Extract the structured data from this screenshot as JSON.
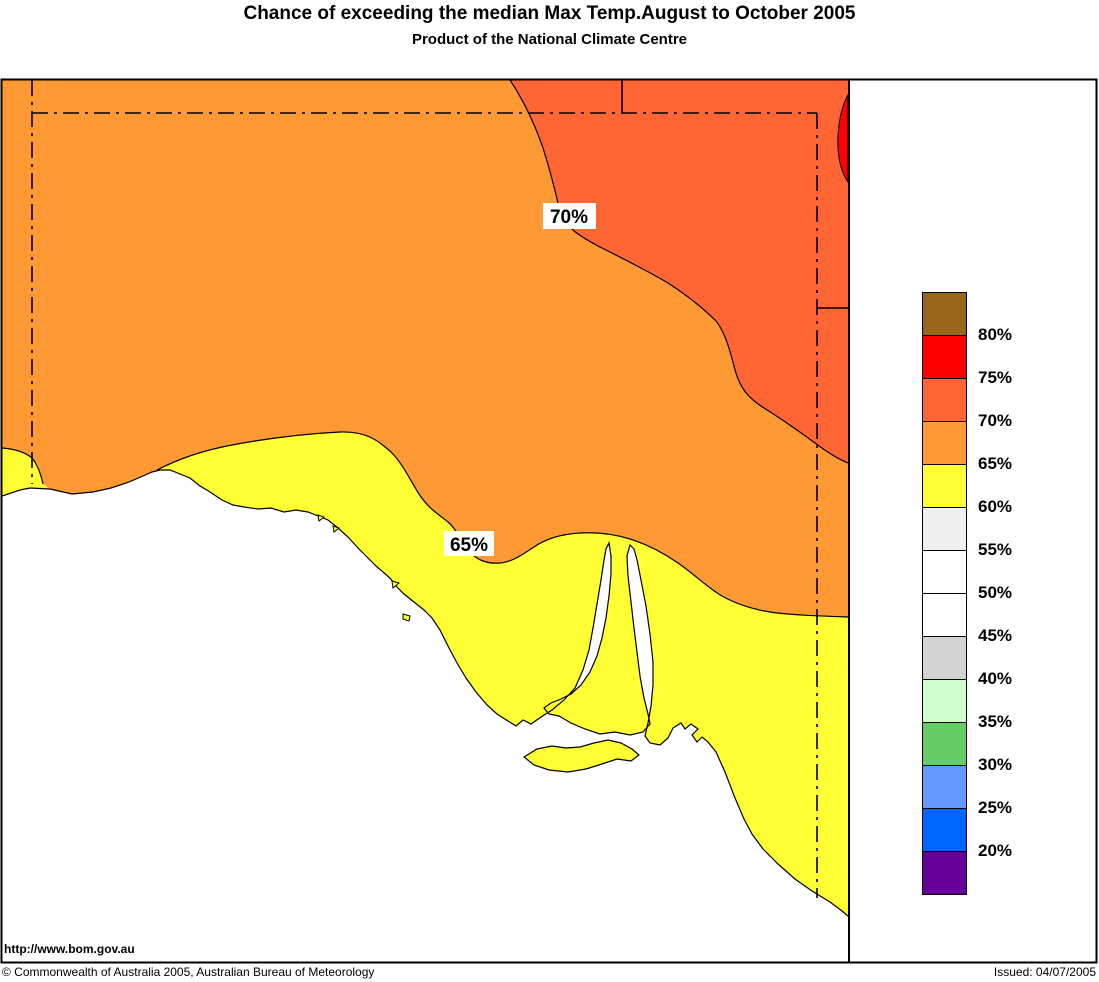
{
  "title": "Chance of exceeding the median Max Temp.August to October 2005",
  "subtitle": "Product of the National Climate Centre",
  "map": {
    "contour_label_70": "70%",
    "contour_label_65": "65%",
    "watermark_url": "http://www.bom.gov.au",
    "colors": {
      "ocean": "#FFFFFF",
      "band_60_65": "#FFFF33",
      "band_65_70": "#FF9933",
      "band_70_75": "#FF6633",
      "band_75_80": "#FF0000"
    }
  },
  "legend": {
    "entries": [
      {
        "color": "#996619",
        "label": "80%"
      },
      {
        "color": "#FF0000",
        "label": "75%"
      },
      {
        "color": "#FF6633",
        "label": "70%"
      },
      {
        "color": "#FF9933",
        "label": "65%"
      },
      {
        "color": "#FFFF33",
        "label": "60%"
      },
      {
        "color": "#F0F0F0",
        "label": "55%"
      },
      {
        "color": "#FFFFFF",
        "label": "50%"
      },
      {
        "color": "#FFFFFF",
        "label": "45%"
      },
      {
        "color": "#D3D3D3",
        "label": "40%"
      },
      {
        "color": "#CCFFCC",
        "label": "35%"
      },
      {
        "color": "#66CC66",
        "label": "30%"
      },
      {
        "color": "#6699FF",
        "label": "25%"
      },
      {
        "color": "#0066FF",
        "label": "20%"
      },
      {
        "color": "#660099",
        "label": ""
      }
    ]
  },
  "footer": {
    "copyright": "© Commonwealth of Australia 2005, Australian Bureau of Meteorology",
    "issued": "Issued: 04/07/2005"
  }
}
